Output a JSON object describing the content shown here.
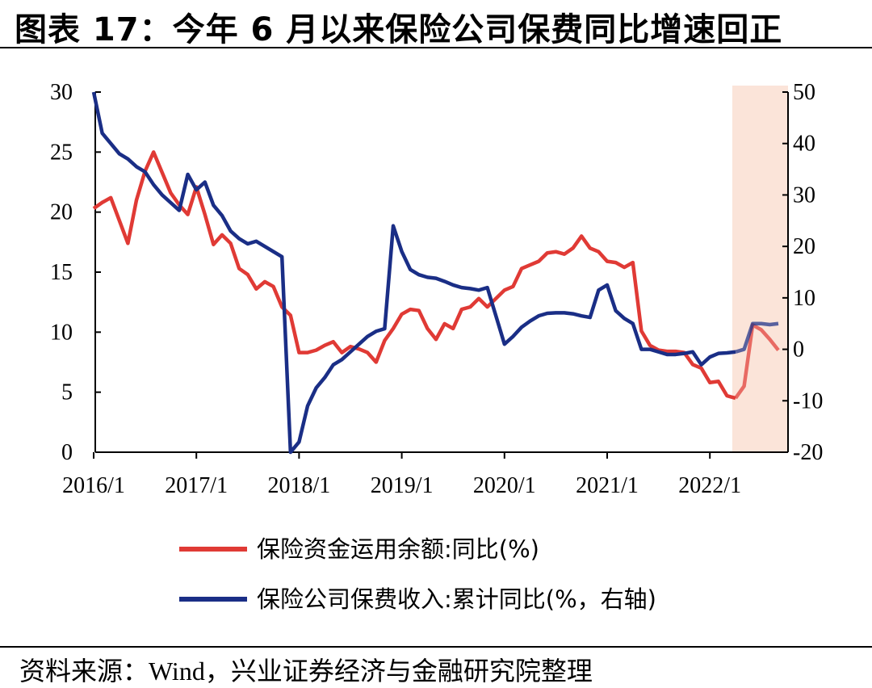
{
  "title": "图表 17：今年 6 月以来保险公司保费同比增速回正",
  "source": "资料来源：Wind，兴业证券经济与金融研究院整理",
  "chart_data": {
    "type": "line",
    "title": "图表 17：今年 6 月以来保险公司保费同比增速回正",
    "x_tick_labels": [
      "2016/1",
      "2017/1",
      "2018/1",
      "2019/1",
      "2020/1",
      "2021/1",
      "2022/1"
    ],
    "left_ylim": [
      0,
      30
    ],
    "left_yticks": [
      0,
      5,
      10,
      15,
      20,
      25,
      30
    ],
    "right_ylim": [
      -20,
      50
    ],
    "right_yticks": [
      -20,
      -10,
      0,
      10,
      20,
      30,
      40,
      50
    ],
    "grid": false,
    "legend_position": "bottom",
    "highlight": {
      "from": "2022/4",
      "to": "2022/9",
      "color": "#fbe4d9"
    },
    "colors": {
      "insurance_funds": "#e03a35",
      "premium_income": "#1a2e86"
    },
    "series": [
      {
        "name": "保险资金运用余额:同比(%)",
        "axis": "left",
        "color": "#e03a35",
        "x": [
          "2016/1",
          "2016/2",
          "2016/3",
          "2016/4",
          "2016/5",
          "2016/6",
          "2016/7",
          "2016/8",
          "2016/9",
          "2016/10",
          "2016/11",
          "2016/12",
          "2017/1",
          "2017/2",
          "2017/3",
          "2017/4",
          "2017/5",
          "2017/6",
          "2017/7",
          "2017/8",
          "2017/9",
          "2017/10",
          "2017/11",
          "2017/12",
          "2018/1",
          "2018/2",
          "2018/3",
          "2018/4",
          "2018/5",
          "2018/6",
          "2018/7",
          "2018/8",
          "2018/9",
          "2018/10",
          "2018/11",
          "2018/12",
          "2019/1",
          "2019/2",
          "2019/3",
          "2019/4",
          "2019/5",
          "2019/6",
          "2019/7",
          "2019/8",
          "2019/9",
          "2019/10",
          "2019/11",
          "2019/12",
          "2020/1",
          "2020/2",
          "2020/3",
          "2020/4",
          "2020/5",
          "2020/6",
          "2020/7",
          "2020/8",
          "2020/9",
          "2020/10",
          "2020/11",
          "2020/12",
          "2021/1",
          "2021/2",
          "2021/3",
          "2021/4",
          "2021/5",
          "2021/6",
          "2021/7",
          "2021/8",
          "2021/9",
          "2021/10",
          "2021/11",
          "2021/12",
          "2022/1",
          "2022/2",
          "2022/3",
          "2022/4",
          "2022/5",
          "2022/6",
          "2022/7",
          "2022/8",
          "2022/9"
        ],
        "values": [
          20.3,
          20.8,
          21.2,
          19.3,
          17.4,
          21.0,
          23.4,
          25.0,
          23.3,
          21.6,
          20.6,
          19.8,
          22.1,
          19.8,
          17.3,
          18.1,
          17.4,
          15.3,
          14.8,
          13.6,
          14.2,
          13.8,
          12.1,
          11.4,
          8.3,
          8.3,
          8.5,
          8.9,
          9.2,
          8.3,
          8.8,
          8.6,
          8.3,
          7.5,
          9.3,
          10.3,
          11.5,
          11.9,
          11.8,
          10.3,
          9.4,
          10.7,
          10.3,
          11.9,
          12.1,
          12.8,
          12.1,
          12.8,
          13.5,
          13.8,
          15.3,
          15.6,
          15.9,
          16.6,
          16.7,
          16.5,
          17.0,
          18.0,
          17.0,
          16.7,
          15.9,
          15.8,
          15.4,
          15.8,
          10.1,
          8.9,
          8.5,
          8.4,
          8.4,
          8.3,
          7.3,
          7.0,
          5.8,
          5.9,
          4.7,
          4.5,
          5.5,
          10.6,
          10.2,
          9.4,
          8.5
        ]
      },
      {
        "name": "保险公司保费收入:累计同比(%，右轴)",
        "axis": "right",
        "color": "#1a2e86",
        "x": [
          "2016/1",
          "2016/2",
          "2016/3",
          "2016/4",
          "2016/5",
          "2016/6",
          "2016/7",
          "2016/8",
          "2016/9",
          "2016/10",
          "2016/11",
          "2016/12",
          "2017/1",
          "2017/2",
          "2017/3",
          "2017/4",
          "2017/5",
          "2017/6",
          "2017/7",
          "2017/8",
          "2017/9",
          "2017/10",
          "2017/11",
          "2017/12",
          "2018/1",
          "2018/2",
          "2018/3",
          "2018/4",
          "2018/5",
          "2018/6",
          "2018/7",
          "2018/8",
          "2018/9",
          "2018/10",
          "2018/11",
          "2018/12",
          "2019/1",
          "2019/2",
          "2019/3",
          "2019/4",
          "2019/5",
          "2019/6",
          "2019/7",
          "2019/8",
          "2019/9",
          "2019/10",
          "2019/11",
          "2019/12",
          "2020/1",
          "2020/2",
          "2020/3",
          "2020/4",
          "2020/5",
          "2020/6",
          "2020/7",
          "2020/8",
          "2020/9",
          "2020/10",
          "2020/11",
          "2020/12",
          "2021/1",
          "2021/2",
          "2021/3",
          "2021/4",
          "2021/5",
          "2021/6",
          "2021/7",
          "2021/8",
          "2021/9",
          "2021/10",
          "2021/11",
          "2021/12",
          "2022/1",
          "2022/2",
          "2022/3",
          "2022/4",
          "2022/5",
          "2022/6",
          "2022/7",
          "2022/8",
          "2022/9"
        ],
        "values": [
          50.0,
          42.0,
          40.0,
          38.0,
          37.0,
          35.5,
          34.5,
          32.0,
          30.0,
          28.5,
          27.0,
          34.0,
          31.0,
          32.5,
          28.0,
          26.0,
          23.0,
          21.5,
          20.5,
          21.0,
          20.0,
          19.0,
          18.0,
          -20.0,
          -18.0,
          -11.0,
          -7.5,
          -5.5,
          -3.0,
          -2.0,
          -0.5,
          1.0,
          2.5,
          3.5,
          4.0,
          24.0,
          19.0,
          15.5,
          14.5,
          14.0,
          13.8,
          13.2,
          12.5,
          12.0,
          11.8,
          11.5,
          12.0,
          6.5,
          1.0,
          2.5,
          4.3,
          5.5,
          6.5,
          7.0,
          7.1,
          7.1,
          6.9,
          6.5,
          6.2,
          11.5,
          12.5,
          7.5,
          6.0,
          5.0,
          0.0,
          0.0,
          -0.5,
          -1.0,
          -1.0,
          -0.8,
          -0.5,
          -3.0,
          -1.5,
          -0.8,
          -0.7,
          -0.5,
          0.0,
          5.0,
          5.0,
          4.8,
          5.0
        ]
      }
    ]
  }
}
